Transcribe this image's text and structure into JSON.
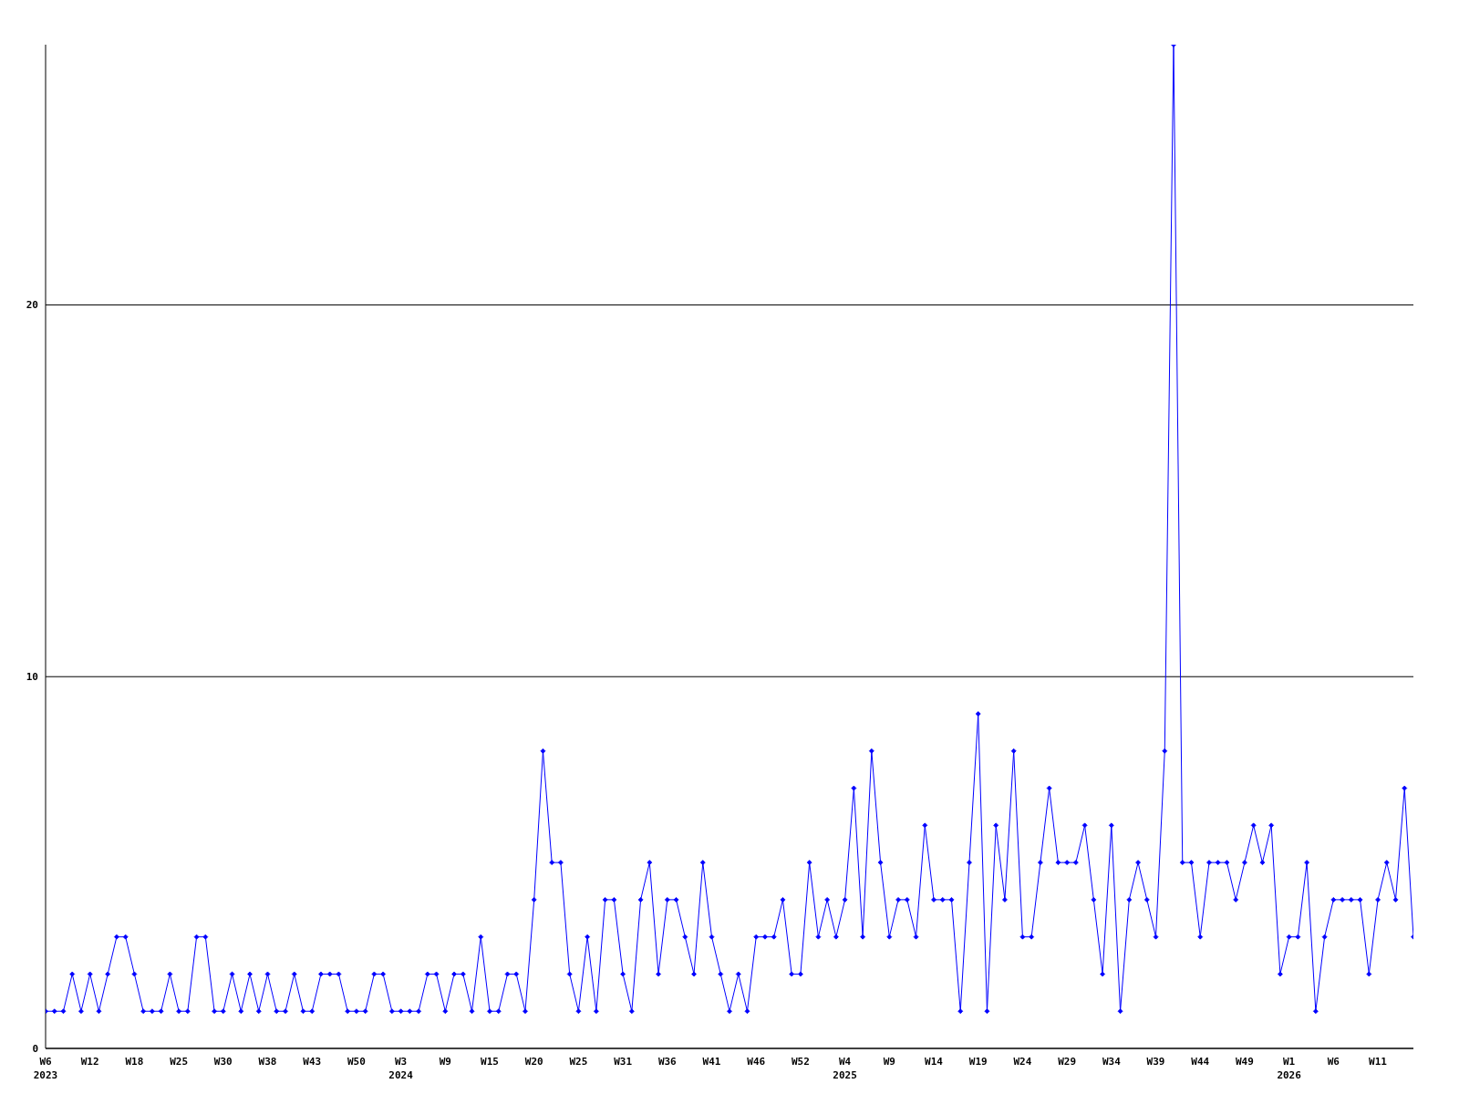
{
  "chart_data": {
    "type": "line",
    "categories": [
      "W6\n2023",
      null,
      null,
      null,
      null,
      "W12",
      null,
      null,
      null,
      null,
      "W18",
      null,
      null,
      null,
      null,
      "W25",
      null,
      null,
      null,
      null,
      "W30",
      null,
      null,
      null,
      null,
      "W38",
      null,
      null,
      null,
      null,
      "W43",
      null,
      null,
      null,
      null,
      "W50",
      null,
      null,
      null,
      null,
      "W3\n2024",
      null,
      null,
      null,
      null,
      "W9",
      null,
      null,
      null,
      null,
      "W15",
      null,
      null,
      null,
      null,
      "W20",
      null,
      null,
      null,
      null,
      "W25",
      null,
      null,
      null,
      null,
      "W31",
      null,
      null,
      null,
      null,
      "W36",
      null,
      null,
      null,
      null,
      "W41",
      null,
      null,
      null,
      null,
      "W46",
      null,
      null,
      null,
      null,
      "W52",
      null,
      null,
      null,
      null,
      "W4\n2025",
      null,
      null,
      null,
      null,
      "W9",
      null,
      null,
      null,
      null,
      "W14",
      null,
      null,
      null,
      null,
      "W19",
      null,
      null,
      null,
      null,
      "W24",
      null,
      null,
      null,
      null,
      "W29",
      null,
      null,
      null,
      null,
      "W34",
      null,
      null,
      null,
      null,
      "W39",
      null,
      null,
      null,
      null,
      "W44",
      null,
      null,
      null,
      null,
      "W49",
      null,
      null,
      null,
      null,
      "W1\n2026",
      null,
      null,
      null,
      null,
      "W6",
      null,
      null,
      null,
      null,
      "W11",
      null,
      null,
      null,
      null
    ],
    "series": [
      {
        "color": "#0000ff",
        "values": [
          1,
          1,
          1,
          2,
          1,
          2,
          1,
          2,
          3,
          3,
          2,
          1,
          1,
          1,
          2,
          1,
          1,
          3,
          3,
          1,
          1,
          2,
          1,
          2,
          1,
          2,
          1,
          1,
          2,
          1,
          1,
          2,
          2,
          2,
          1,
          1,
          1,
          2,
          2,
          1,
          1,
          1,
          1,
          2,
          2,
          1,
          2,
          2,
          1,
          3,
          1,
          1,
          2,
          2,
          1,
          4,
          8,
          5,
          5,
          2,
          1,
          3,
          1,
          4,
          4,
          2,
          1,
          4,
          5,
          2,
          4,
          4,
          3,
          2,
          5,
          3,
          2,
          1,
          2,
          1,
          3,
          3,
          3,
          4,
          2,
          2,
          5,
          3,
          4,
          3,
          4,
          7,
          3,
          8,
          5,
          3,
          4,
          4,
          3,
          6,
          4,
          4,
          4,
          1,
          5,
          9,
          1,
          6,
          4,
          8,
          3,
          3,
          5,
          7,
          5,
          5,
          5,
          6,
          4,
          2,
          6,
          1,
          4,
          5,
          4,
          3,
          8,
          27,
          5,
          5,
          3,
          5,
          5,
          5,
          4,
          5,
          6,
          5,
          6,
          2,
          3,
          3,
          5,
          1,
          3,
          4,
          4,
          4,
          4,
          2,
          4,
          5,
          4,
          7,
          3
        ]
      }
    ],
    "ylim": [
      0,
      27
    ],
    "yticks": [
      0,
      10,
      20
    ],
    "grid": "y",
    "marker": "diamond",
    "line_style": "solid",
    "legend": false
  }
}
